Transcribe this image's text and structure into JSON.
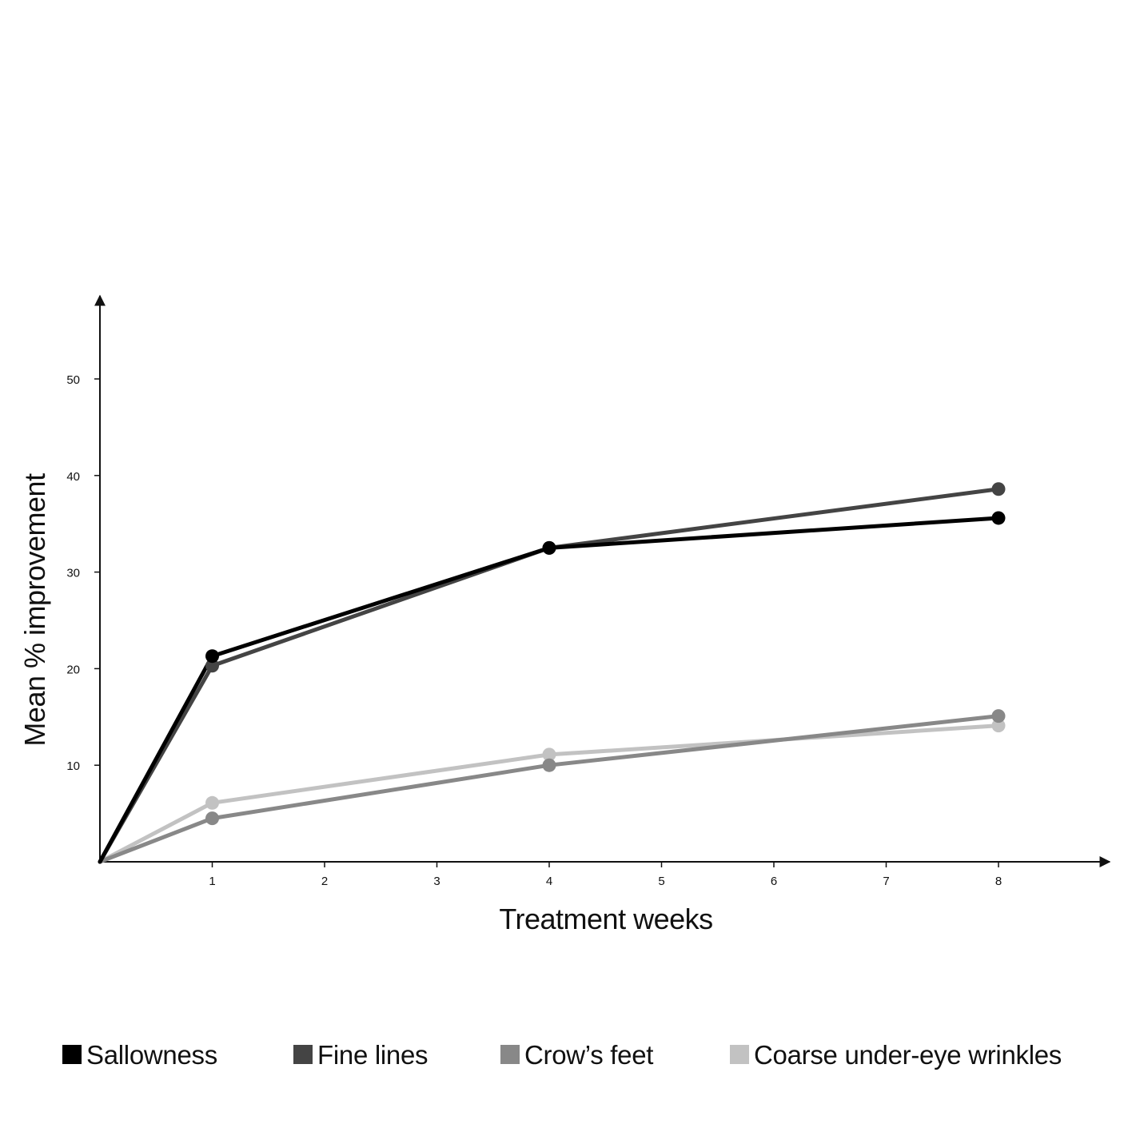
{
  "chart_data": {
    "type": "line",
    "title": "",
    "xlabel": "Treatment weeks",
    "ylabel": "Mean % improvement",
    "x_ticks": [
      1,
      2,
      3,
      4,
      5,
      6,
      7,
      8
    ],
    "y_ticks": [
      10,
      20,
      30,
      40,
      50
    ],
    "xlim": [
      0,
      8.4
    ],
    "ylim": [
      0,
      58
    ],
    "grid": false,
    "legend_position": "bottom",
    "series": [
      {
        "name": "Sallowness",
        "color": "#000000",
        "x": [
          0,
          1,
          4,
          8
        ],
        "y": [
          0,
          21.3,
          32.5,
          35.6
        ]
      },
      {
        "name": "Fine lines",
        "color": "#444444",
        "x": [
          0,
          1,
          4,
          8
        ],
        "y": [
          0,
          20.3,
          32.5,
          38.6
        ]
      },
      {
        "name": "Crow’s feet",
        "color": "#888888",
        "x": [
          0,
          1,
          4,
          8
        ],
        "y": [
          0,
          4.5,
          10.0,
          15.1
        ]
      },
      {
        "name": "Coarse under-eye wrinkles",
        "color": "#c2c2c2",
        "x": [
          0,
          1,
          4,
          8
        ],
        "y": [
          0,
          6.1,
          11.1,
          14.1
        ]
      }
    ]
  }
}
